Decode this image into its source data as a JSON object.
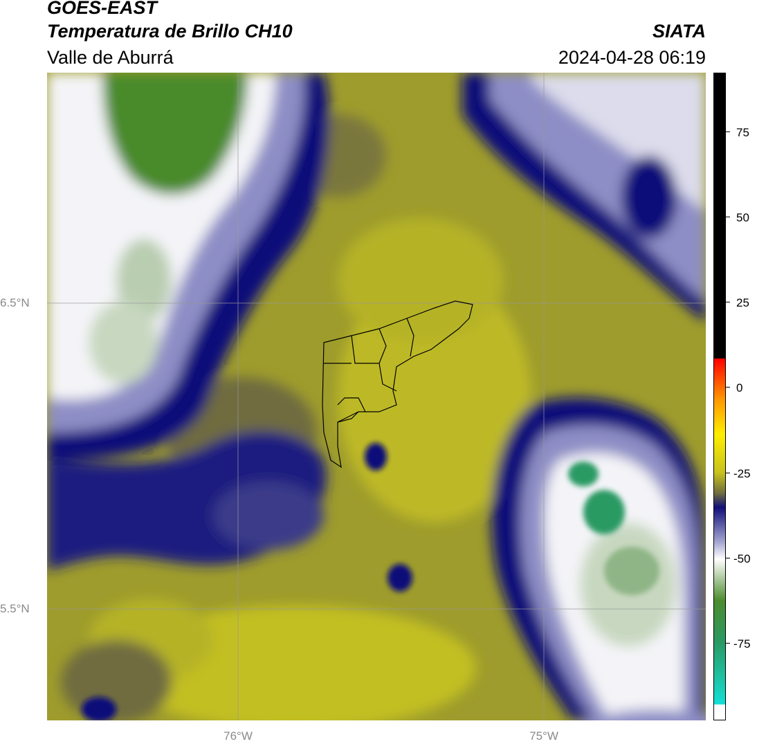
{
  "header": {
    "satellite": "GOES-EAST",
    "product": "Temperatura de Brillo CH10",
    "region": "Valle de Aburrá",
    "organization": "SIATA",
    "datetime": "2024-04-28 06:19"
  },
  "map": {
    "lat_labels": [
      "6.5°N",
      "5.5°N"
    ],
    "lon_labels": [
      "76°W",
      "75°W"
    ],
    "colors": {
      "olive": "#9e9c2c",
      "yellow": "#c4c222",
      "dark_olive": "#6f6c3f",
      "navy": "#10107a",
      "lavender": "#8e8ec6",
      "white": "#f4f4f8",
      "pale_green": "#b9cdb0",
      "green": "#4a8a2a",
      "teal": "#2a9a64"
    }
  },
  "colorbar": {
    "ticks": [
      "75",
      "50",
      "25",
      "0",
      "-25",
      "-50",
      "-75"
    ],
    "gradient": [
      "#000000",
      "#000000",
      "#ff0000",
      "#ff9900",
      "#ffee00",
      "#c8c21e",
      "#6f6c3f",
      "#10107a",
      "#a5a5d2",
      "#ffffff",
      "#4c8c2e",
      "#2a9a64",
      "#14e0d6",
      "#ffffff"
    ]
  }
}
